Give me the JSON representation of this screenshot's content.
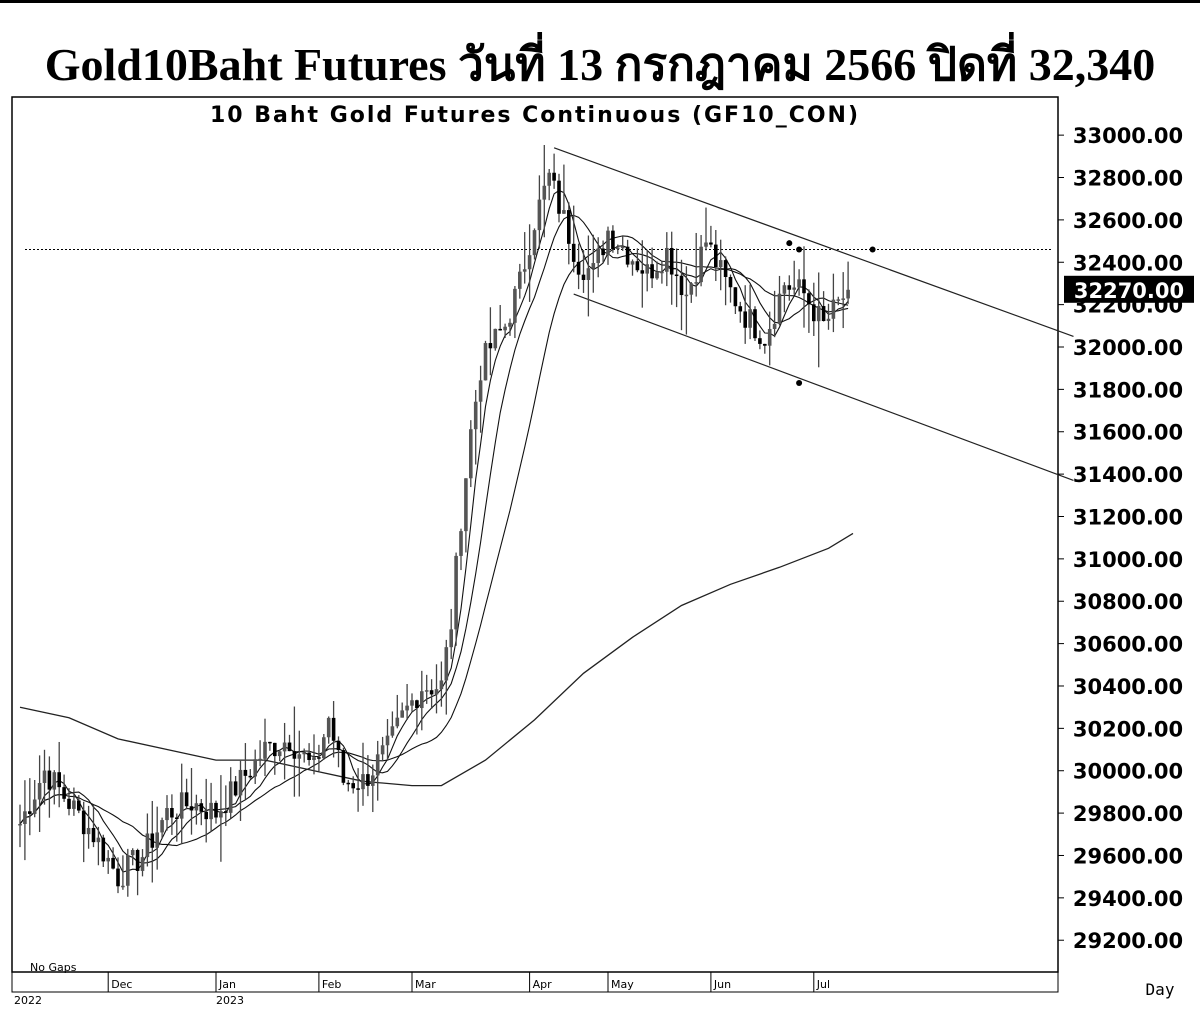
{
  "page": {
    "title": "Gold10Baht Futures วันที่ 13 กรกฎาคม 2566 ปิดที่ 32,340"
  },
  "chart_data": {
    "type": "line",
    "title": "10 Baht Gold Futures Continuous (GF10_CON)",
    "corner_note": "No Gaps",
    "period_label": "Day",
    "last_price_label": "32270.00",
    "last_price": 32270,
    "reference_level": 32460,
    "ylim": [
      29050,
      33180
    ],
    "y_ticks": [
      {
        "value": 33000,
        "label": "33000.00"
      },
      {
        "value": 32800,
        "label": "32800.00"
      },
      {
        "value": 32600,
        "label": "32600.00"
      },
      {
        "value": 32400,
        "label": "32400.00"
      },
      {
        "value": 32200,
        "label": "32200.00"
      },
      {
        "value": 32000,
        "label": "32000.00"
      },
      {
        "value": 31800,
        "label": "31800.00"
      },
      {
        "value": 31600,
        "label": "31600.00"
      },
      {
        "value": 31400,
        "label": "31400.00"
      },
      {
        "value": 31200,
        "label": "31200.00"
      },
      {
        "value": 31000,
        "label": "31000.00"
      },
      {
        "value": 30800,
        "label": "30800.00"
      },
      {
        "value": 30600,
        "label": "30600.00"
      },
      {
        "value": 30400,
        "label": "30400.00"
      },
      {
        "value": 30200,
        "label": "30200.00"
      },
      {
        "value": 30000,
        "label": "30000.00"
      },
      {
        "value": 29800,
        "label": "29800.00"
      },
      {
        "value": 29600,
        "label": "29600.00"
      },
      {
        "value": 29400,
        "label": "29400.00"
      },
      {
        "value": 29200,
        "label": "29200.00"
      }
    ],
    "x_months": [
      {
        "label": "Dec",
        "day": 18
      },
      {
        "label": "Jan",
        "day": 40
      },
      {
        "label": "Feb",
        "day": 61
      },
      {
        "label": "Mar",
        "day": 80
      },
      {
        "label": "Apr",
        "day": 104
      },
      {
        "label": "May",
        "day": 120
      },
      {
        "label": "Jun",
        "day": 141
      },
      {
        "label": "Jul",
        "day": 162
      }
    ],
    "x_years": [
      {
        "label": "2022",
        "day": 0
      },
      {
        "label": "2023",
        "day": 40
      }
    ],
    "channel": {
      "upper": [
        {
          "day": 109,
          "value": 32940
        },
        {
          "day": 215,
          "value": 32050
        }
      ],
      "lower": [
        {
          "day": 113,
          "value": 32250
        },
        {
          "day": 215,
          "value": 31370
        }
      ]
    },
    "marker_points": [
      {
        "day": 157,
        "value": 32490
      },
      {
        "day": 159,
        "value": 32460
      },
      {
        "day": 174,
        "value": 32460
      },
      {
        "day": 159,
        "value": 31830
      }
    ],
    "price_anchors": [
      {
        "day": 0,
        "value": 29750
      },
      {
        "day": 5,
        "value": 30000
      },
      {
        "day": 10,
        "value": 29850
      },
      {
        "day": 15,
        "value": 29700
      },
      {
        "day": 20,
        "value": 29500
      },
      {
        "day": 25,
        "value": 29600
      },
      {
        "day": 30,
        "value": 29800
      },
      {
        "day": 35,
        "value": 29850
      },
      {
        "day": 40,
        "value": 29800
      },
      {
        "day": 45,
        "value": 29950
      },
      {
        "day": 50,
        "value": 30100
      },
      {
        "day": 55,
        "value": 30150
      },
      {
        "day": 60,
        "value": 30000
      },
      {
        "day": 63,
        "value": 30250
      },
      {
        "day": 66,
        "value": 29950
      },
      {
        "day": 70,
        "value": 29950
      },
      {
        "day": 75,
        "value": 30100
      },
      {
        "day": 78,
        "value": 30250
      },
      {
        "day": 82,
        "value": 30400
      },
      {
        "day": 86,
        "value": 30400
      },
      {
        "day": 88,
        "value": 30700
      },
      {
        "day": 90,
        "value": 31200
      },
      {
        "day": 92,
        "value": 31600
      },
      {
        "day": 94,
        "value": 31900
      },
      {
        "day": 96,
        "value": 32000
      },
      {
        "day": 99,
        "value": 32100
      },
      {
        "day": 102,
        "value": 32300
      },
      {
        "day": 105,
        "value": 32600
      },
      {
        "day": 108,
        "value": 32800
      },
      {
        "day": 111,
        "value": 32600
      },
      {
        "day": 114,
        "value": 32400
      },
      {
        "day": 117,
        "value": 32350
      },
      {
        "day": 120,
        "value": 32550
      },
      {
        "day": 124,
        "value": 32450
      },
      {
        "day": 128,
        "value": 32350
      },
      {
        "day": 132,
        "value": 32450
      },
      {
        "day": 136,
        "value": 32250
      },
      {
        "day": 140,
        "value": 32500
      },
      {
        "day": 144,
        "value": 32300
      },
      {
        "day": 148,
        "value": 32150
      },
      {
        "day": 152,
        "value": 32050
      },
      {
        "day": 156,
        "value": 32300
      },
      {
        "day": 160,
        "value": 32250
      },
      {
        "day": 164,
        "value": 32100
      },
      {
        "day": 167,
        "value": 32200
      },
      {
        "day": 169,
        "value": 32270
      }
    ],
    "long_ma_anchors": [
      {
        "day": 0,
        "value": 30300
      },
      {
        "day": 10,
        "value": 30250
      },
      {
        "day": 20,
        "value": 30150
      },
      {
        "day": 30,
        "value": 30100
      },
      {
        "day": 40,
        "value": 30050
      },
      {
        "day": 50,
        "value": 30050
      },
      {
        "day": 60,
        "value": 30000
      },
      {
        "day": 70,
        "value": 29950
      },
      {
        "day": 80,
        "value": 29930
      },
      {
        "day": 86,
        "value": 29930
      },
      {
        "day": 95,
        "value": 30050
      },
      {
        "day": 105,
        "value": 30240
      },
      {
        "day": 115,
        "value": 30460
      },
      {
        "day": 125,
        "value": 30630
      },
      {
        "day": 135,
        "value": 30780
      },
      {
        "day": 145,
        "value": 30880
      },
      {
        "day": 155,
        "value": 30960
      },
      {
        "day": 165,
        "value": 31050
      },
      {
        "day": 170,
        "value": 31120
      }
    ]
  }
}
